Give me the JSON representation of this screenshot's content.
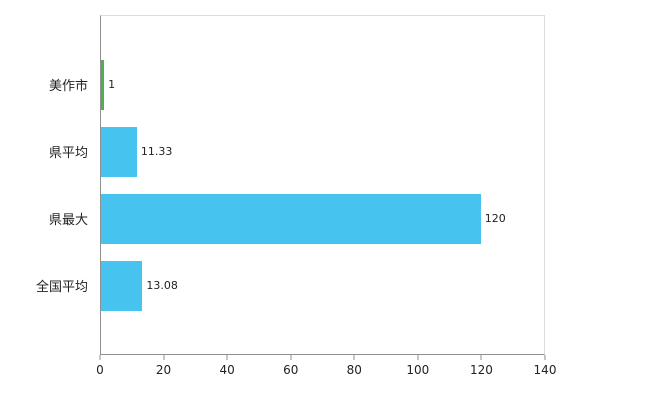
{
  "chart_data": {
    "type": "bar",
    "orientation": "horizontal",
    "title": "",
    "xlabel": "",
    "ylabel": "",
    "categories": [
      "美作市",
      "県平均",
      "県最大",
      "全国平均"
    ],
    "values": [
      1,
      11.33,
      120,
      13.08
    ],
    "value_labels": [
      "1",
      "11.33",
      "120",
      "13.08"
    ],
    "bar_colors": [
      "#4caf50",
      "#47c3ef",
      "#47c3ef",
      "#47c3ef"
    ],
    "xlim": [
      0,
      140
    ],
    "xticks": [
      0,
      20,
      40,
      60,
      80,
      100,
      120,
      140
    ],
    "grid": false,
    "legend": "none"
  },
  "colors": {
    "bar_default": "#47c3ef",
    "bar_highlight": "#4caf50",
    "axis_line": "#8f8f8f",
    "plot_border": "#dcdcdc",
    "text": "#222222",
    "background": "#ffffff"
  }
}
